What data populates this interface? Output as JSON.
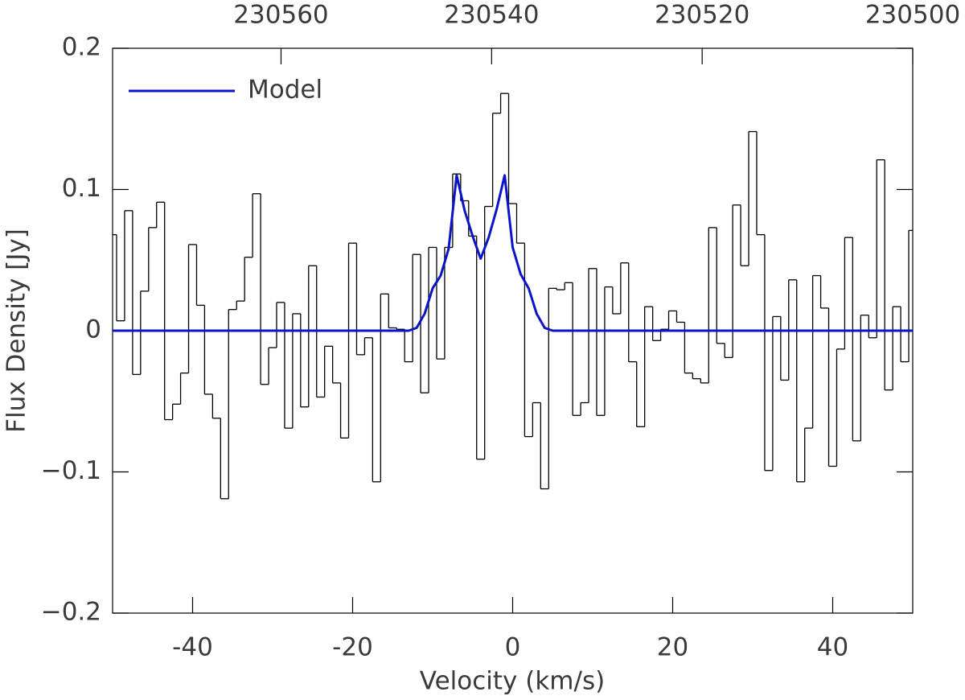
{
  "chart_data": {
    "type": "step",
    "xlabel": "Velocity (km/s)",
    "ylabel": "Flux Density [Jy]",
    "xlim": [
      -50,
      50
    ],
    "ylim": [
      -0.2,
      0.2
    ],
    "xticks": [
      -40,
      -20,
      0,
      20,
      40
    ],
    "yticks": [
      {
        "value": -0.2,
        "label": "−0.2"
      },
      {
        "value": -0.1,
        "label": "−0.1"
      },
      0,
      0.1,
      0.2
    ],
    "x2lim": [
      230576,
      230500
    ],
    "x2ticks": [
      230560,
      230540,
      230520,
      230500
    ],
    "legend": "upper left",
    "series": [
      {
        "type": "step",
        "color": "#000000",
        "bins": [
          -50,
          -49.5,
          -48.5,
          -47.5,
          -46.5,
          -45.5,
          -44.5,
          -43.5,
          -42.5,
          -41.5,
          -40.5,
          -39.5,
          -38.5,
          -37.5,
          -36.5,
          -35.5,
          -34.5,
          -33.5,
          -32.5,
          -31.5,
          -30.5,
          -29.5,
          -28.5,
          -27.5,
          -26.5,
          -25.5,
          -24.5,
          -23.5,
          -22.5,
          -21.5,
          -20.5,
          -19.5,
          -18.5,
          -17.5,
          -16.5,
          -15.5,
          -14.5,
          -13.5,
          -12.5,
          -11.5,
          -10.5,
          -9.5,
          -8.5,
          -7.5,
          -6.5,
          -5.5,
          -4.5,
          -3.5,
          -2.5,
          -1.5,
          -0.5,
          0.5,
          1.5,
          2.5,
          3.5,
          4.5,
          5.5,
          6.5,
          7.5,
          8.5,
          9.5,
          10.5,
          11.5,
          12.5,
          13.5,
          14.5,
          15.5,
          16.5,
          17.5,
          18.5,
          19.5,
          20.5,
          21.5,
          22.5,
          23.5,
          24.5,
          25.5,
          26.5,
          27.5,
          28.5,
          29.5,
          30.5,
          31.5,
          32.5,
          33.5,
          34.5,
          35.5,
          36.5,
          37.5,
          38.5,
          39.5,
          40.5,
          41.5,
          42.5,
          43.5,
          44.5,
          45.5,
          46.5,
          47.5,
          48.5,
          49.5,
          50
        ],
        "values": [
          0.068,
          0.007,
          0.085,
          -0.031,
          0.028,
          0.073,
          0.091,
          -0.063,
          -0.052,
          -0.03,
          0.061,
          0.018,
          -0.045,
          -0.062,
          -0.119,
          0.015,
          0.021,
          0.052,
          0.097,
          -0.038,
          -0.012,
          0.02,
          -0.069,
          0.012,
          -0.054,
          0.046,
          -0.047,
          -0.011,
          -0.037,
          -0.076,
          0.062,
          -0.017,
          -0.005,
          -0.107,
          0.026,
          0.002,
          0.001,
          -0.022,
          0.054,
          -0.044,
          0.059,
          -0.02,
          0.059,
          0.111,
          0.092,
          0.067,
          -0.091,
          0.088,
          0.154,
          0.168,
          0.09,
          0.062,
          -0.075,
          -0.051,
          -0.112,
          0.03,
          0.029,
          0.034,
          -0.06,
          -0.051,
          0.044,
          -0.06,
          0.031,
          0.012,
          0.048,
          -0.022,
          -0.068,
          0.017,
          -0.007,
          0.001,
          0.014,
          0.006,
          -0.03,
          -0.034,
          -0.037,
          0.073,
          -0.009,
          -0.019,
          0.089,
          0.046,
          0.141,
          0.068,
          -0.099,
          0.01,
          -0.035,
          0.036,
          -0.107,
          -0.069,
          0.039,
          0.016,
          -0.096,
          -0.013,
          0.066,
          -0.078,
          0.011,
          -0.005,
          0.121,
          -0.042,
          0.017,
          -0.022,
          0.071
        ]
      },
      {
        "type": "line",
        "name": "Model",
        "color": "#0a14c8",
        "x": [
          -50,
          -13,
          -12,
          -11,
          -10,
          -9,
          -8,
          -7,
          -6,
          -5,
          -4,
          -3,
          -2,
          -1,
          0,
          1,
          2,
          3,
          4,
          5,
          50
        ],
        "values": [
          0,
          0,
          0.002,
          0.012,
          0.03,
          0.039,
          0.058,
          0.11,
          0.085,
          0.067,
          0.051,
          0.066,
          0.086,
          0.11,
          0.059,
          0.04,
          0.03,
          0.012,
          0.002,
          0,
          0
        ]
      }
    ]
  }
}
